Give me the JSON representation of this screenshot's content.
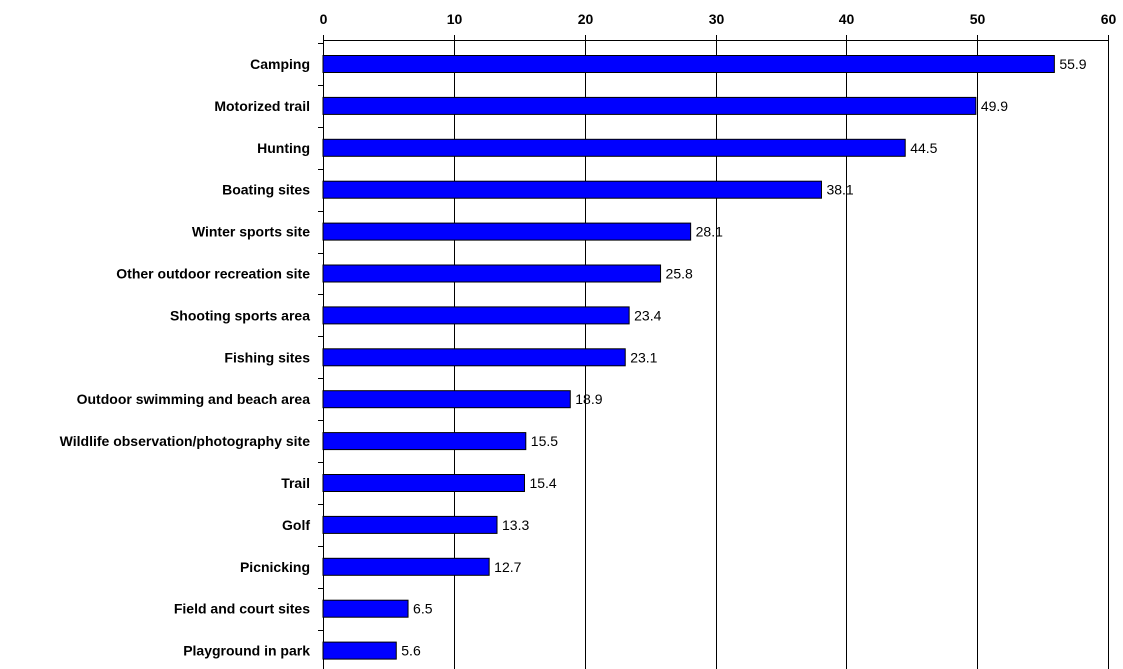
{
  "chart_data": {
    "type": "bar",
    "orientation": "horizontal",
    "title": "",
    "xlabel": "",
    "ylabel": "",
    "xlim": [
      0,
      60
    ],
    "x_ticks": [
      "0",
      "10",
      "20",
      "30",
      "40",
      "50",
      "60"
    ],
    "x_axis_position": "top",
    "grid": true,
    "legend": "none",
    "bar_color": "#0000FF",
    "bar_edge_color": "#000000",
    "categories": [
      "Camping",
      "Motorized trail",
      "Hunting",
      "Boating sites",
      "Winter sports site",
      "Other outdoor recreation site",
      "Shooting sports area",
      "Fishing sites",
      "Outdoor swimming and beach area",
      "Wildlife observation/photography site",
      "Trail",
      "Golf",
      "Picnicking",
      "Field and court sites",
      "Playground in park"
    ],
    "values": [
      55.9,
      49.9,
      44.5,
      38.1,
      28.1,
      25.8,
      23.4,
      23.1,
      18.9,
      15.5,
      15.4,
      13.3,
      12.7,
      6.5,
      5.6
    ],
    "data_labels": [
      "55.9",
      "49.9",
      "44.5",
      "38.1",
      "28.1",
      "25.8",
      "23.4",
      "23.1",
      "18.9",
      "15.5",
      "15.4",
      "13.3",
      "12.7",
      "6.5",
      "5.6"
    ]
  }
}
